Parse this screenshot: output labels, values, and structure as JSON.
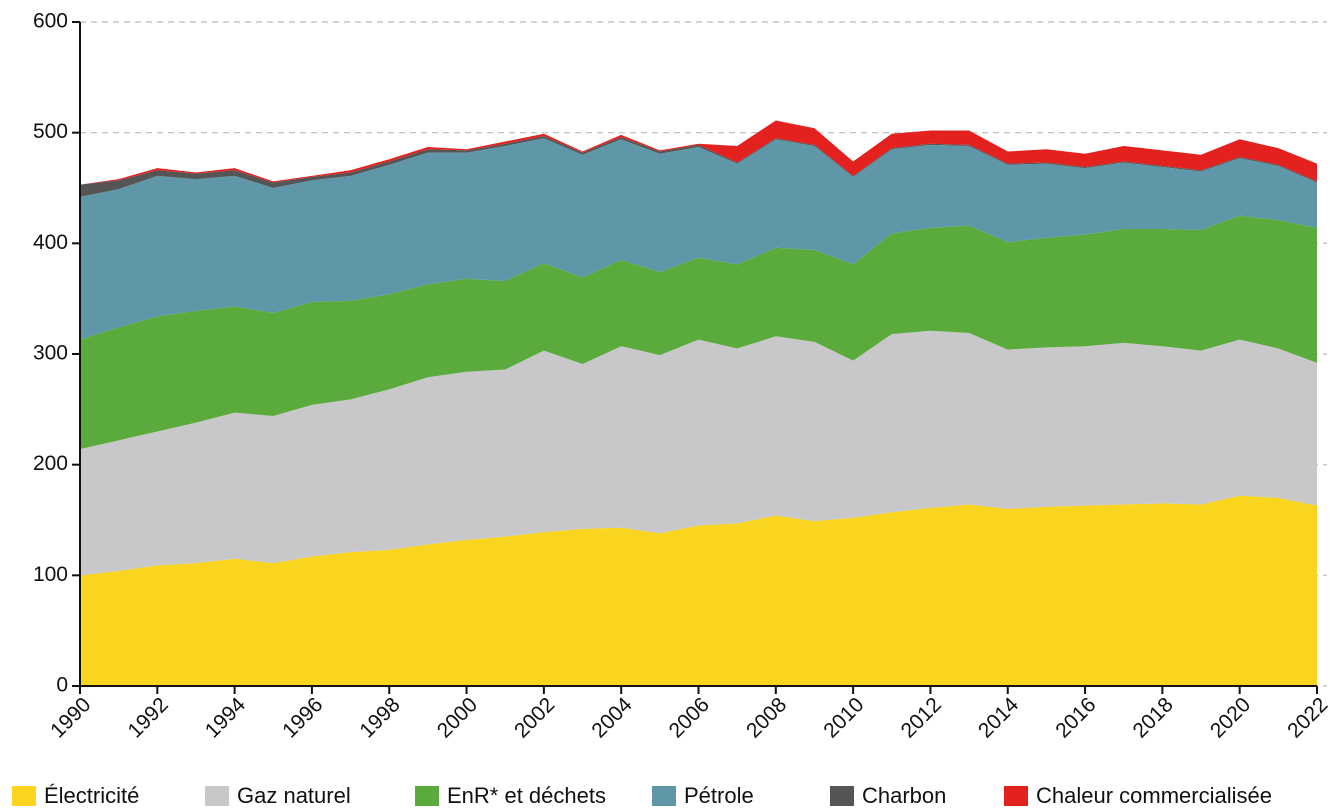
{
  "chart_data": {
    "type": "stacked_area",
    "x": [
      1990,
      1991,
      1992,
      1993,
      1994,
      1995,
      1996,
      1997,
      1998,
      1999,
      2000,
      2001,
      2002,
      2003,
      2004,
      2005,
      2006,
      2007,
      2008,
      2009,
      2010,
      2011,
      2012,
      2013,
      2014,
      2015,
      2016,
      2017,
      2018,
      2019,
      2020,
      2021,
      2022
    ],
    "xlim": [
      1990,
      2022
    ],
    "xticks": [
      1990,
      1992,
      1994,
      1996,
      1998,
      2000,
      2002,
      2004,
      2006,
      2008,
      2010,
      2012,
      2014,
      2016,
      2018,
      2020,
      2022
    ],
    "ylim": [
      0,
      600
    ],
    "yticks": [
      0,
      100,
      200,
      300,
      400,
      500,
      600
    ],
    "grid": true,
    "legend": "bottom",
    "series": [
      {
        "name": "Électricité",
        "color": "#f9d51f",
        "values": [
          100,
          104,
          109,
          111,
          115,
          111,
          117,
          121,
          123,
          128,
          132,
          135,
          139,
          142,
          143,
          138,
          145,
          147,
          154,
          149,
          152,
          157,
          161,
          164,
          160,
          162,
          163,
          164,
          165,
          164,
          172,
          170,
          163
        ]
      },
      {
        "name": "Gaz naturel",
        "color": "#c8c8ca",
        "values": [
          114,
          118,
          121,
          127,
          132,
          133,
          137,
          138,
          145,
          151,
          152,
          151,
          164,
          149,
          164,
          161,
          168,
          158,
          162,
          162,
          142,
          161,
          160,
          155,
          144,
          144,
          144,
          146,
          142,
          139,
          141,
          135,
          129
        ]
      },
      {
        "name": "EnR* et déchets",
        "color": "#5aab3c",
        "values": [
          99,
          102,
          104,
          101,
          96,
          93,
          93,
          89,
          86,
          84,
          84,
          80,
          79,
          78,
          78,
          75,
          74,
          76,
          80,
          83,
          87,
          91,
          93,
          97,
          97,
          99,
          101,
          103,
          106,
          109,
          112,
          116,
          122
        ]
      },
      {
        "name": "Pétrole",
        "color": "#5f97a8",
        "values": [
          129,
          125,
          127,
          119,
          118,
          113,
          110,
          113,
          117,
          119,
          114,
          122,
          113,
          111,
          109,
          107,
          100,
          91,
          98,
          94,
          79,
          76,
          75,
          72,
          70,
          67,
          60,
          60,
          56,
          53,
          52,
          49,
          41
        ]
      },
      {
        "name": "Charbon",
        "color": "#555555",
        "values": [
          11,
          8,
          5,
          5,
          5,
          5,
          3,
          3,
          3,
          3,
          2,
          2,
          2,
          2,
          2,
          2,
          2,
          1,
          1,
          1,
          1,
          1,
          1,
          1,
          1,
          1,
          1,
          1,
          1,
          1,
          1,
          1,
          1
        ]
      },
      {
        "name": "Chaleur commercialisée",
        "color": "#e3211f",
        "values": [
          0,
          1,
          2,
          1,
          2,
          1,
          1,
          2,
          2,
          2,
          1,
          2,
          2,
          1,
          2,
          1,
          1,
          15,
          16,
          15,
          13,
          13,
          12,
          13,
          11,
          12,
          12,
          14,
          14,
          14,
          16,
          15,
          16
        ]
      }
    ]
  }
}
